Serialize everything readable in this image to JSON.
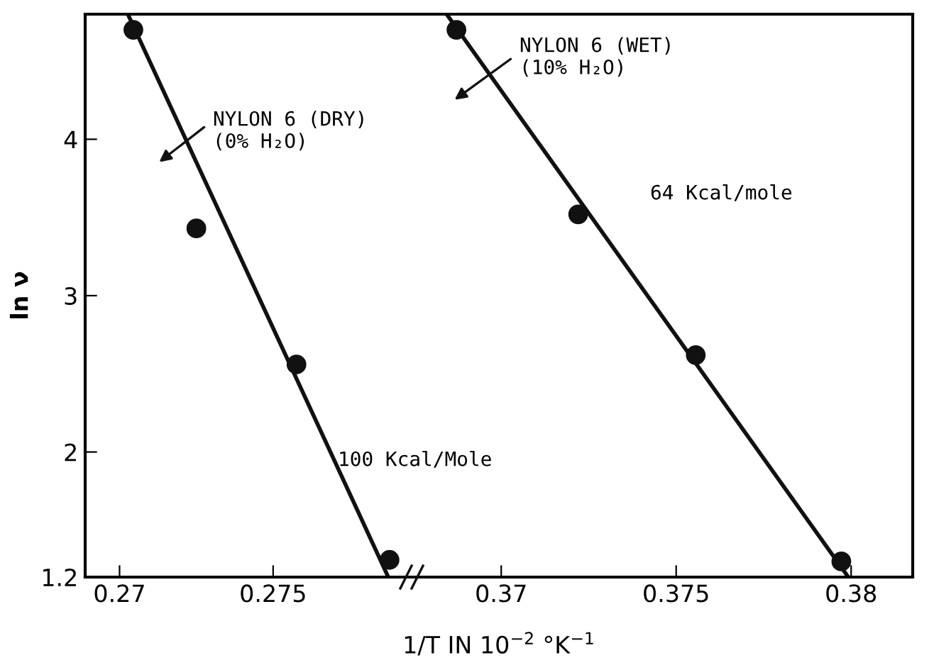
{
  "chart_data": [
    {
      "type": "scatter",
      "ylabel": "ln ν",
      "xlabel": "1/T IN 10$^{−2}$ °K$^{−1}$",
      "xlim": [
        0.26888,
        0.27951
      ],
      "xticks": [
        0.27,
        0.275
      ],
      "ylim": [
        1.2,
        4.8
      ],
      "yticks": [
        1.2,
        2,
        3,
        4
      ],
      "grid": false,
      "legend": false,
      "series": [
        {
          "color": "#111111",
          "marker": "circle",
          "x": [
            0.27045,
            0.2725,
            0.27576,
            0.27879
          ],
          "values": [
            4.7,
            3.43,
            2.56,
            1.31
          ]
        },
        {
          "type": "line",
          "color": "#111111",
          "x": [
            0.27027,
            0.27875
          ],
          "values": [
            4.8,
            1.2
          ]
        }
      ],
      "annotations": [
        "NYLON 6 (DRY)\n(0% H₂O)",
        "100 Kcal/Mole"
      ]
    },
    {
      "type": "scatter",
      "xlim": [
        0.36744,
        0.38176
      ],
      "xticks": [
        0.37,
        0.375,
        0.38
      ],
      "ylim": [
        1.2,
        4.8
      ],
      "tick_labels": "x",
      "grid": false,
      "legend": false,
      "series": [
        {
          "color": "#111111",
          "marker": "circle",
          "x": [
            0.36872,
            0.3722,
            0.37556,
            0.37972
          ],
          "values": [
            4.7,
            3.52,
            2.62,
            1.3
          ]
        },
        {
          "type": "line",
          "color": "#111111",
          "x": [
            0.36844,
            0.37992
          ],
          "values": [
            4.8,
            1.2
          ]
        }
      ],
      "annotations": [
        "NYLON 6 (WET)\n(10% H₂O)",
        "64 Kcal/mole"
      ]
    }
  ]
}
